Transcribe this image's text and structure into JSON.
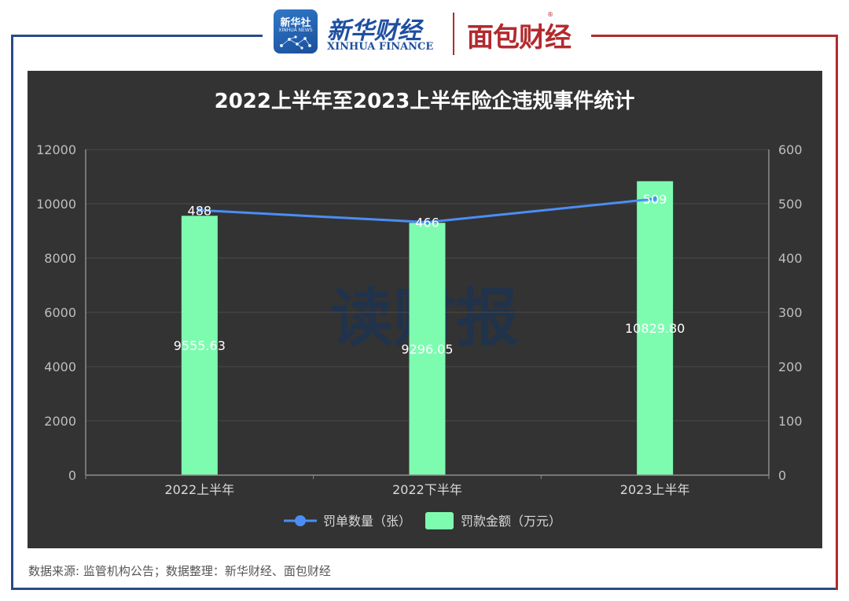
{
  "header": {
    "xinhua_badge_title": "新华社",
    "xinhua_badge_sub": "XINHUA NEWS",
    "xinhua_finance_cn": "新华财经",
    "xinhua_finance_en": "XINHUA FINANCE",
    "mianbao_logo": "面包财经",
    "registered_mark": "®",
    "colors": {
      "xinhua_blue": "#1f4fa0",
      "mianbao_red": "#b22a2e"
    }
  },
  "watermark": "读财报",
  "footer": {
    "source": "数据来源: 监管机构公告；数据整理：新华财经、面包财经"
  },
  "chart_data": {
    "type": "bar",
    "title": "2022上半年至2023上半年险企违规事件统计",
    "categories": [
      "2022上半年",
      "2022下半年",
      "2023上半年"
    ],
    "y_left": {
      "ylim": [
        0,
        12000
      ],
      "ticks": [
        0,
        2000,
        4000,
        6000,
        8000,
        10000,
        12000
      ]
    },
    "y_right": {
      "ylim": [
        0,
        600
      ],
      "ticks": [
        0,
        100,
        200,
        300,
        400,
        500,
        600
      ]
    },
    "series": [
      {
        "name": "罚款金额（万元）",
        "type": "bar",
        "axis": "left",
        "color": "#7dfcb0",
        "values": [
          9555.63,
          9296.05,
          10829.8
        ],
        "labels": [
          "9555.63",
          "9296.05",
          "10829.80"
        ]
      },
      {
        "name": "罚单数量（张）",
        "type": "line",
        "axis": "right",
        "color": "#4a8ef5",
        "values": [
          488,
          466,
          509
        ],
        "labels": [
          "488",
          "466",
          "509"
        ]
      }
    ],
    "legend": [
      {
        "name": "罚单数量（张）",
        "marker": "line-circle",
        "color": "#4a8ef5"
      },
      {
        "name": "罚款金额（万元）",
        "marker": "rect",
        "color": "#7dfcb0"
      }
    ],
    "legend_position": "bottom-center",
    "grid": true,
    "background": "#333333"
  }
}
